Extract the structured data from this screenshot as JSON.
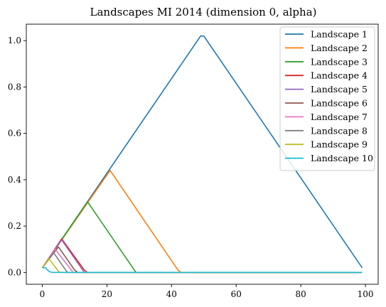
{
  "chart_data": {
    "type": "line",
    "title": "Landscapes MI 2014 (dimension 0, alpha)",
    "xlabel": "",
    "ylabel": "",
    "xlim": [
      -4.95,
      103.95
    ],
    "ylim": [
      -0.051,
      1.071
    ],
    "xticks": [
      0,
      20,
      40,
      60,
      80,
      100
    ],
    "xtick_labels": [
      "0",
      "20",
      "40",
      "60",
      "80",
      "100"
    ],
    "yticks": [
      0.0,
      0.2,
      0.4,
      0.6,
      0.8,
      1.0
    ],
    "ytick_labels": [
      "0.0",
      "0.2",
      "0.4",
      "0.6",
      "0.8",
      "1.0"
    ],
    "grid": false,
    "legend_position": "top-right",
    "series": [
      {
        "name": "Landscape 1",
        "color": "#1f77b4",
        "points": [
          [
            0,
            0.02
          ],
          [
            49,
            1.02
          ],
          [
            50,
            1.02
          ],
          [
            99,
            0.02
          ]
        ]
      },
      {
        "name": "Landscape 2",
        "color": "#ff7f0e",
        "points": [
          [
            0,
            0.02
          ],
          [
            21,
            0.44
          ],
          [
            42,
            0.01
          ],
          [
            43,
            0.0
          ],
          [
            99,
            0.0
          ]
        ]
      },
      {
        "name": "Landscape 3",
        "color": "#2ca02c",
        "points": [
          [
            0,
            0.02
          ],
          [
            14,
            0.305
          ],
          [
            28.5,
            0.01
          ],
          [
            29,
            0.0
          ],
          [
            99,
            0.0
          ]
        ]
      },
      {
        "name": "Landscape 4",
        "color": "#d62728",
        "points": [
          [
            0,
            0.02
          ],
          [
            6,
            0.145
          ],
          [
            13,
            0.01
          ],
          [
            14,
            0.0
          ],
          [
            99,
            0.0
          ]
        ]
      },
      {
        "name": "Landscape 5",
        "color": "#9467bd",
        "points": [
          [
            0,
            0.02
          ],
          [
            6,
            0.14
          ],
          [
            12.5,
            0.01
          ],
          [
            13,
            0.0
          ],
          [
            99,
            0.0
          ]
        ]
      },
      {
        "name": "Landscape 6",
        "color": "#8c564b",
        "points": [
          [
            0,
            0.02
          ],
          [
            5,
            0.11
          ],
          [
            10,
            0.01
          ],
          [
            11,
            0.0
          ],
          [
            99,
            0.0
          ]
        ]
      },
      {
        "name": "Landscape 7",
        "color": "#e377c2",
        "points": [
          [
            0,
            0.02
          ],
          [
            4,
            0.1
          ],
          [
            9,
            0.01
          ],
          [
            9.5,
            0.0
          ],
          [
            99,
            0.0
          ]
        ]
      },
      {
        "name": "Landscape 8",
        "color": "#7f7f7f",
        "points": [
          [
            0,
            0.02
          ],
          [
            3.5,
            0.085
          ],
          [
            7.5,
            0.005
          ],
          [
            8,
            0.0
          ],
          [
            99,
            0.0
          ]
        ]
      },
      {
        "name": "Landscape 9",
        "color": "#bcbd22",
        "points": [
          [
            0,
            0.02
          ],
          [
            2,
            0.06
          ],
          [
            5,
            0.005
          ],
          [
            5.5,
            0.0
          ],
          [
            99,
            0.0
          ]
        ]
      },
      {
        "name": "Landscape 10",
        "color": "#17becf",
        "points": [
          [
            0,
            0.02
          ],
          [
            1,
            0.02
          ],
          [
            2,
            0.005
          ],
          [
            3,
            0.0
          ],
          [
            99,
            0.0
          ]
        ]
      }
    ]
  }
}
